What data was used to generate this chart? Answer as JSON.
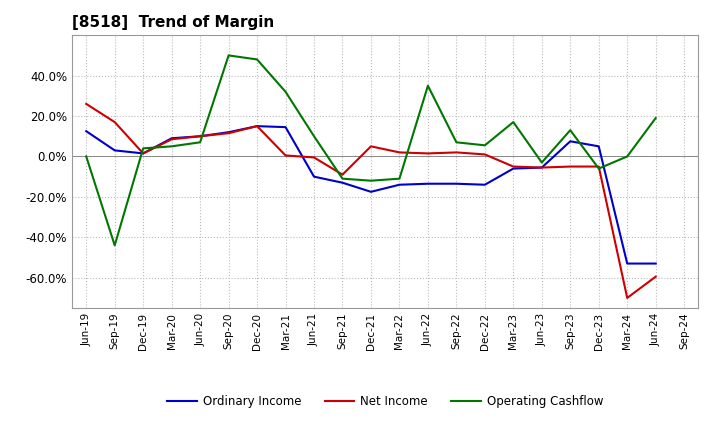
{
  "title": "[8518]  Trend of Margin",
  "x_labels": [
    "Jun-19",
    "Sep-19",
    "Dec-19",
    "Mar-20",
    "Jun-20",
    "Sep-20",
    "Dec-20",
    "Mar-21",
    "Jun-21",
    "Sep-21",
    "Dec-21",
    "Mar-22",
    "Jun-22",
    "Sep-22",
    "Dec-22",
    "Mar-23",
    "Jun-23",
    "Sep-23",
    "Dec-23",
    "Mar-24",
    "Jun-24",
    "Sep-24"
  ],
  "ordinary_income": [
    12.5,
    3.0,
    1.5,
    9.0,
    10.0,
    12.0,
    15.0,
    14.5,
    -10.0,
    -13.0,
    -17.5,
    -14.0,
    -13.5,
    -13.5,
    -14.0,
    -6.0,
    -5.5,
    7.5,
    5.0,
    -53.0,
    -53.0,
    null
  ],
  "net_income": [
    26.0,
    17.0,
    1.5,
    8.5,
    10.0,
    11.5,
    15.0,
    0.5,
    -0.5,
    -9.0,
    5.0,
    2.0,
    1.5,
    2.0,
    1.0,
    -5.0,
    -5.5,
    -5.0,
    -5.0,
    -70.0,
    -59.5,
    null
  ],
  "operating_cashflow": [
    0.0,
    -44.0,
    4.0,
    5.0,
    7.0,
    50.0,
    48.0,
    32.0,
    10.0,
    -11.0,
    -12.0,
    -11.0,
    35.0,
    7.0,
    5.5,
    17.0,
    -3.0,
    13.0,
    -6.0,
    0.0,
    19.0,
    null
  ],
  "ylim": [
    -75,
    60
  ],
  "yticks": [
    -60,
    -40,
    -20,
    0,
    20,
    40
  ],
  "line_colors": {
    "ordinary_income": "#0000cc",
    "net_income": "#cc0000",
    "operating_cashflow": "#007700"
  },
  "legend_labels": [
    "Ordinary Income",
    "Net Income",
    "Operating Cashflow"
  ],
  "background_color": "#ffffff",
  "grid_color": "#bbbbbb"
}
